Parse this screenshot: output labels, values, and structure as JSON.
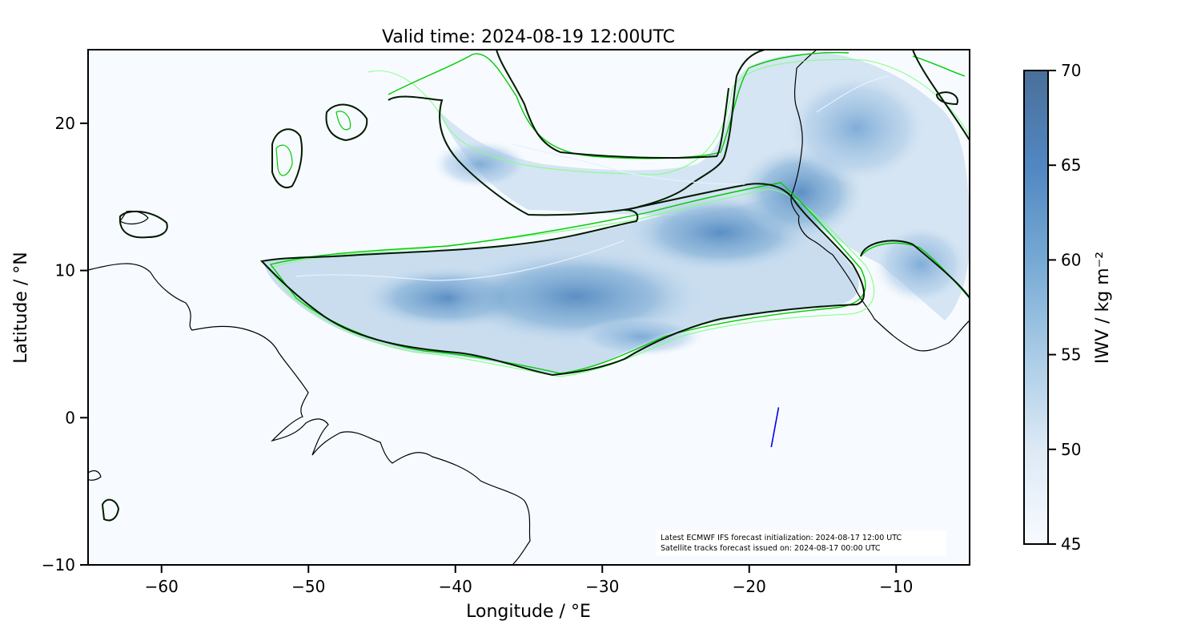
{
  "map": {
    "title": "Valid time: 2024-08-19 12:00UTC",
    "xlabel": "Longitude / °E",
    "ylabel": "Latitude / °N",
    "extent": {
      "lon": [
        -65,
        -5
      ],
      "lat": [
        -10,
        25
      ]
    },
    "x_ticks": [
      -60,
      -50,
      -40,
      -30,
      -20,
      -10
    ],
    "x_tick_labels": [
      "−60",
      "−50",
      "−40",
      "−30",
      "−20",
      "−10"
    ],
    "y_ticks": [
      20,
      10,
      0,
      -10
    ],
    "y_tick_labels": [
      "20",
      "10",
      "0",
      "−10"
    ],
    "colorbar": {
      "label": "IWV / kg m⁻²",
      "range": [
        45,
        70
      ],
      "ticks": [
        70,
        65,
        60,
        55,
        50,
        45
      ],
      "tick_labels": [
        "70",
        "65",
        "60",
        "55",
        "50",
        "45"
      ],
      "color_low": "#f7fbff",
      "color_high": "#4a6f99"
    },
    "annotation": {
      "line1": "Latest ECMWF IFS forecast initialization: 2024-08-17 12:00 UTC",
      "line2": "Satellite tracks forecast issued on: 2024-08-17 00:00 UTC"
    },
    "satellite_track": {
      "color": "#0000ee",
      "start": {
        "lon": -18.5,
        "lat": -2.0
      },
      "end": {
        "lon": -18.0,
        "lat": 0.7
      }
    },
    "contour_colors": {
      "primary": "#000000",
      "secondary": "#00cc00",
      "tertiary": "#80ff80",
      "light": "#e6f0ff"
    },
    "icons": {
      "track": "line-segment"
    }
  }
}
